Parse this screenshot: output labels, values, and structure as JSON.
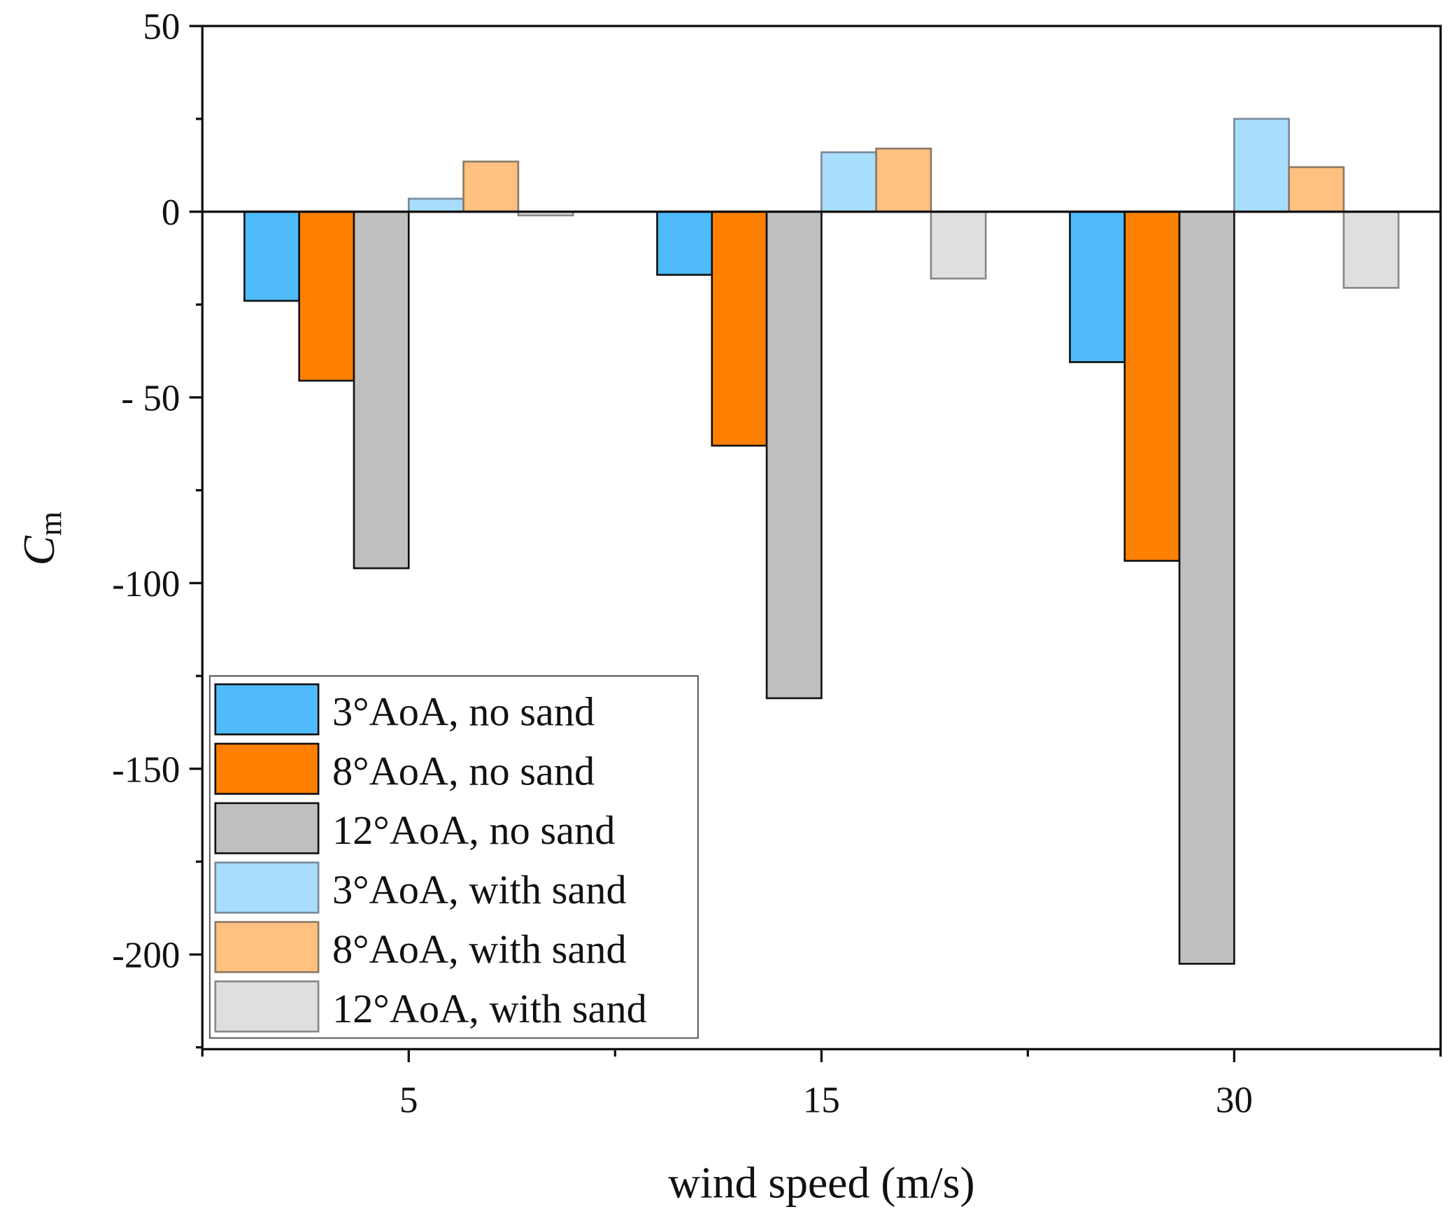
{
  "chart_data": {
    "type": "bar",
    "title": "",
    "xlabel": "wind speed (m/s)",
    "ylabel": "C",
    "ylabel_subscript": "m",
    "categories": [
      "5",
      "15",
      "30"
    ],
    "ylim": [
      -225,
      50
    ],
    "yticks": [
      50,
      0,
      -50,
      -100,
      -150,
      -200
    ],
    "ytick_labels": [
      "50",
      "0",
      "- 50",
      "-100",
      "-150",
      "-200"
    ],
    "grid": false,
    "legend_position": "bottom-left",
    "series": [
      {
        "name": "3°AoA, no sand",
        "color": "#4FBBFB",
        "edge": "#111111",
        "values": [
          -24,
          -17,
          -40.5
        ]
      },
      {
        "name": "8°AoA, no sand",
        "color": "#FF8000",
        "edge": "#111111",
        "values": [
          -45.5,
          -63,
          -94
        ]
      },
      {
        "name": "12°AoA, no sand",
        "color": "#BFBFBF",
        "edge": "#111111",
        "values": [
          -96,
          -131,
          -202.5
        ]
      },
      {
        "name": "3°AoA, with sand",
        "color": "#A8DDFD",
        "edge": "#7A8A99",
        "values": [
          3.5,
          16,
          25
        ]
      },
      {
        "name": "8°AoA, with sand",
        "color": "#FFC080",
        "edge": "#8A7A66",
        "values": [
          13.5,
          17,
          12
        ]
      },
      {
        "name": "12°AoA, with sand",
        "color": "#DFDFDF",
        "edge": "#888888",
        "values": [
          -1,
          -18,
          -20.5
        ]
      }
    ]
  }
}
